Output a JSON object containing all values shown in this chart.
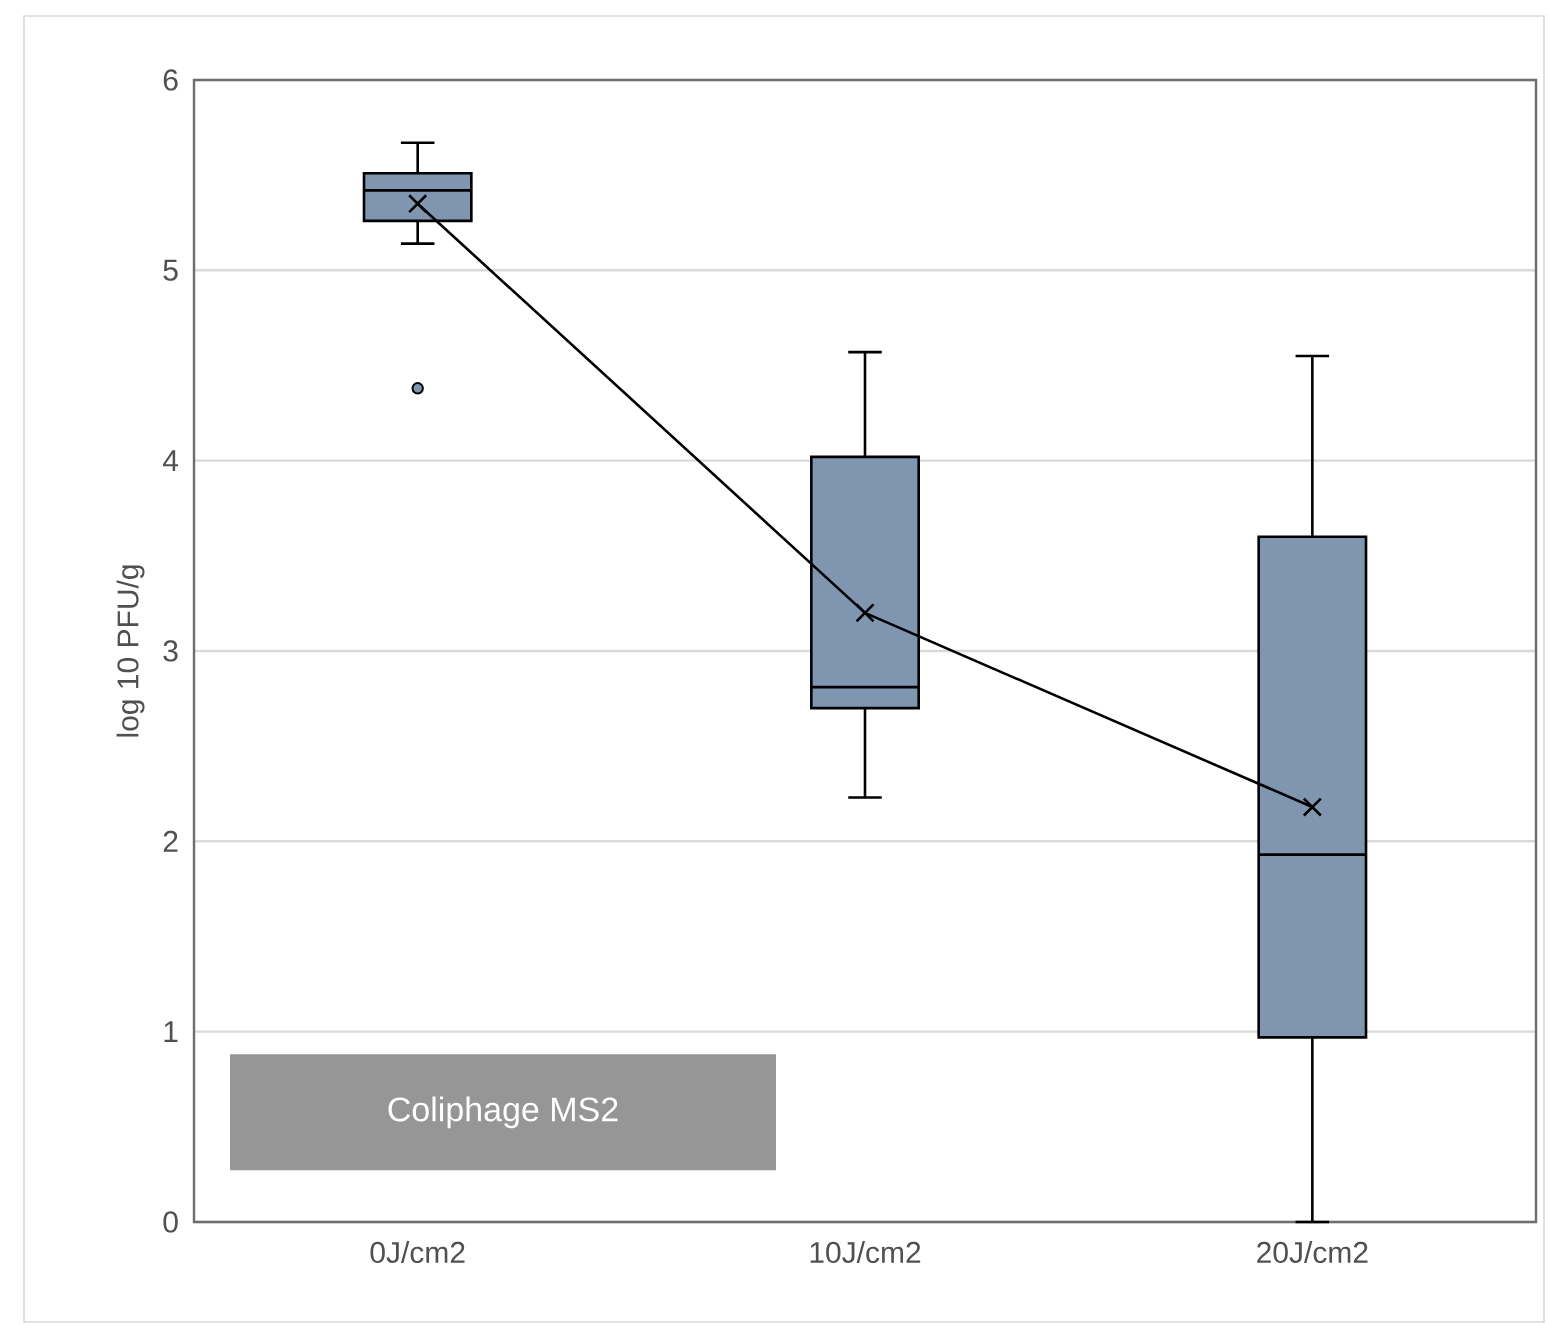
{
  "chart_data": {
    "type": "box",
    "ylabel": "log 10 PFU/g",
    "categories": [
      "0J/cm2",
      "10J/cm2",
      "20J/cm2"
    ],
    "ylim": [
      0,
      6
    ],
    "yticks": [
      0,
      1,
      2,
      3,
      4,
      5,
      6
    ],
    "grid": "y",
    "series": [
      {
        "type": "box",
        "color": "#8096b0",
        "boxes": [
          {
            "low": 5.14,
            "q1": 5.26,
            "median": 5.42,
            "q3": 5.51,
            "high": 5.67,
            "outliers": [
              4.38
            ]
          },
          {
            "low": 2.23,
            "q1": 2.7,
            "median": 2.81,
            "q3": 4.02,
            "high": 4.57
          },
          {
            "low": 0,
            "q1": 0.97,
            "median": 1.93,
            "q3": 3.6,
            "high": 4.55
          }
        ]
      },
      {
        "type": "line",
        "color": "#000000",
        "marker": "cross",
        "line_style": "solid",
        "values": [
          5.35,
          3.2,
          2.18
        ]
      }
    ],
    "annotations": [
      "Coliphage MS2"
    ]
  }
}
